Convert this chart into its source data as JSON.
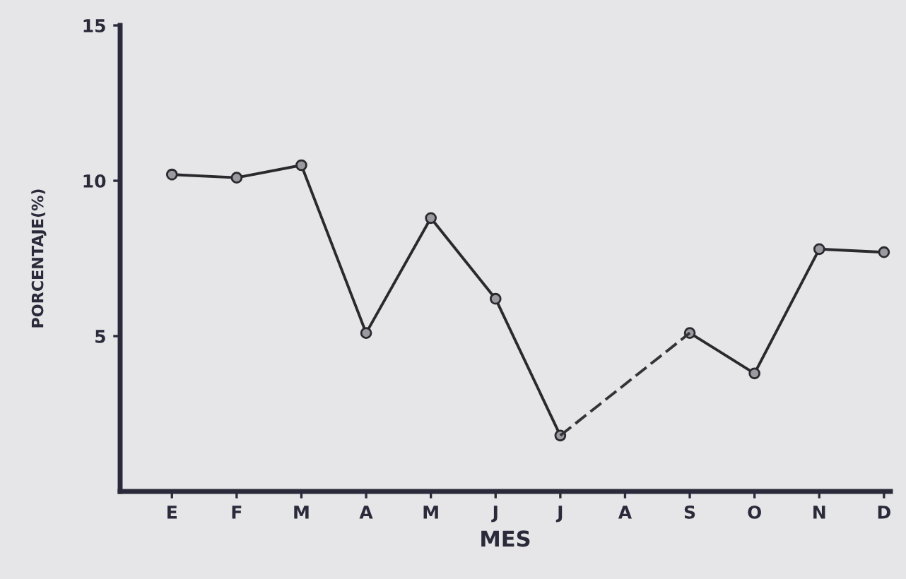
{
  "chart_data": {
    "type": "line",
    "xlabel": "MES",
    "ylabel": "PORCENTAJE(%)",
    "categories": [
      "E",
      "F",
      "M",
      "A",
      "M",
      "J",
      "J",
      "A",
      "S",
      "O",
      "N",
      "D"
    ],
    "series": [
      {
        "color": "#2a2a2e",
        "values": [
          10.2,
          10.1,
          10.5,
          5.1,
          8.8,
          6.2,
          1.8,
          null,
          5.1,
          3.8,
          7.8,
          7.7
        ],
        "marker": "circle",
        "line_style": "solid"
      },
      {
        "color": "#333338",
        "values": [
          null,
          null,
          null,
          null,
          null,
          null,
          1.8,
          3.45,
          5.1,
          null,
          null,
          null
        ],
        "marker": "none",
        "line_style": "dashed"
      }
    ],
    "ylim": [
      0,
      15
    ],
    "yticks": [
      5,
      10,
      15
    ],
    "grid": false,
    "legend": false
  }
}
